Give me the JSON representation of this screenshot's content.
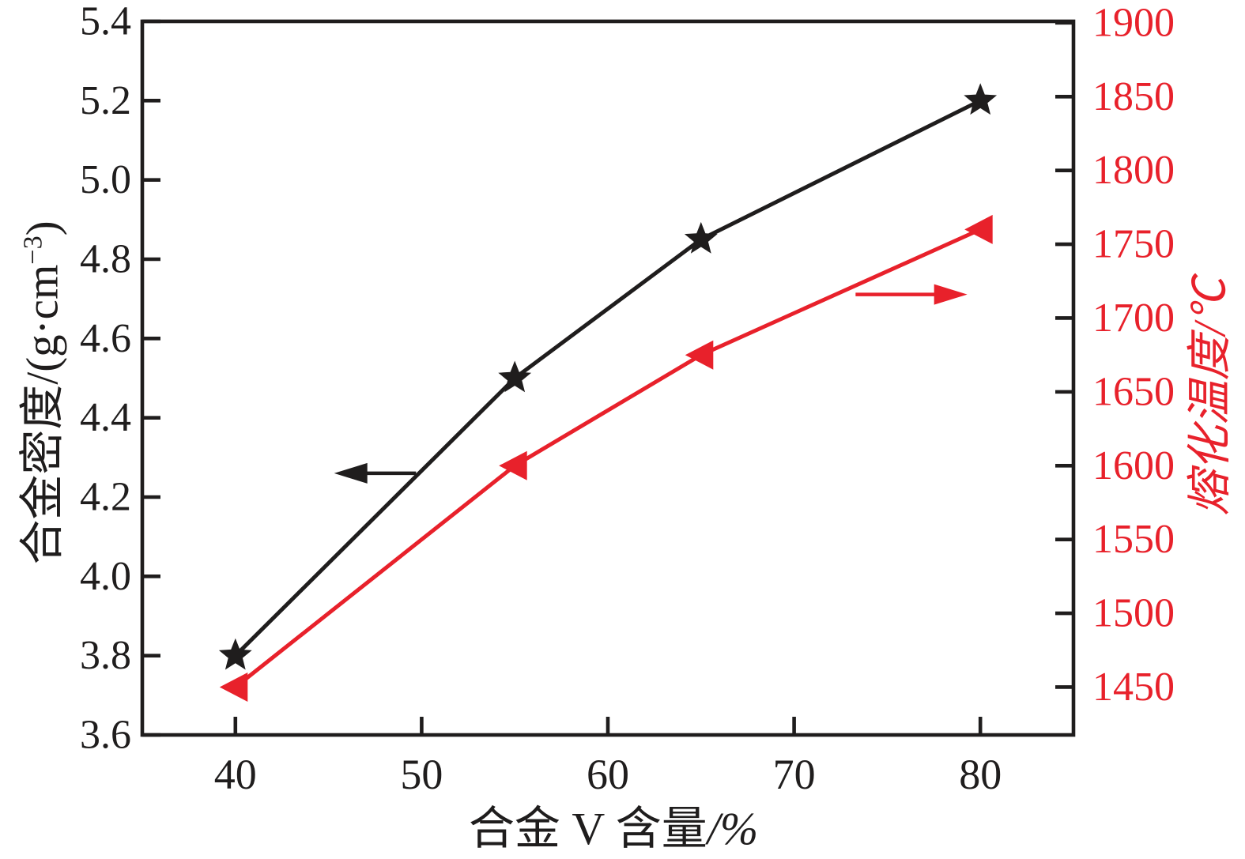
{
  "figure": {
    "background": "#ffffff",
    "black": "#1f1d1d",
    "red": "#e8212b"
  },
  "chart_data": {
    "type": "line",
    "title": "",
    "grid": false,
    "legend": null,
    "xlabel": {
      "full": "合金 V 含量/%",
      "text": "合金 V 含量",
      "unit": "/%"
    },
    "ylabel_left": {
      "full": "合金密度/(g·cm⁻³)",
      "pre": "合金密度/(g·cm",
      "sup": "−3",
      "post": ")"
    },
    "ylabel_right": {
      "full": "熔化温度/℃"
    },
    "x_axis": {
      "range": [
        35,
        85
      ],
      "ticks": [
        "40",
        "50",
        "60",
        "70",
        "80"
      ],
      "color": "#1f1d1d"
    },
    "y_left_axis": {
      "range": [
        3.6,
        5.4
      ],
      "ticks": [
        "5.4",
        "5.2",
        "5.0",
        "4.8",
        "4.6",
        "4.4",
        "4.2",
        "4.0",
        "3.8",
        "3.6"
      ],
      "color": "#1f1d1d"
    },
    "y_right_axis": {
      "range": [
        1417.6,
        1901
      ],
      "ticks": [
        "1900",
        "1850",
        "1800",
        "1750",
        "1700",
        "1650",
        "1600",
        "1550",
        "1500",
        "1450"
      ],
      "color": "#e8212b"
    },
    "series": [
      {
        "name": "alloy-density",
        "label": "合金密度",
        "axis": "left",
        "color": "#1f1d1d",
        "marker": "star",
        "x": [
          40,
          55,
          65,
          80
        ],
        "y": [
          3.8,
          4.5,
          4.85,
          5.2
        ]
      },
      {
        "name": "melting-temperature",
        "label": "熔化温度",
        "axis": "right",
        "color": "#e8212b",
        "marker": "triangle-left",
        "x": [
          40,
          55,
          65,
          80
        ],
        "y": [
          1450,
          1600,
          1675,
          1760
        ]
      }
    ],
    "annotations": [
      {
        "name": "density-axis-arrow",
        "color": "#1f1d1d",
        "axis": "left",
        "direction": "left",
        "y": 4.26,
        "x_tail": 49.7,
        "x_tip": 45.3
      },
      {
        "name": "temperature-axis-arrow",
        "color": "#e8212b",
        "axis": "right",
        "direction": "right",
        "y": 1716,
        "x_tail": 73.3,
        "x_tip": 79.3
      }
    ]
  }
}
